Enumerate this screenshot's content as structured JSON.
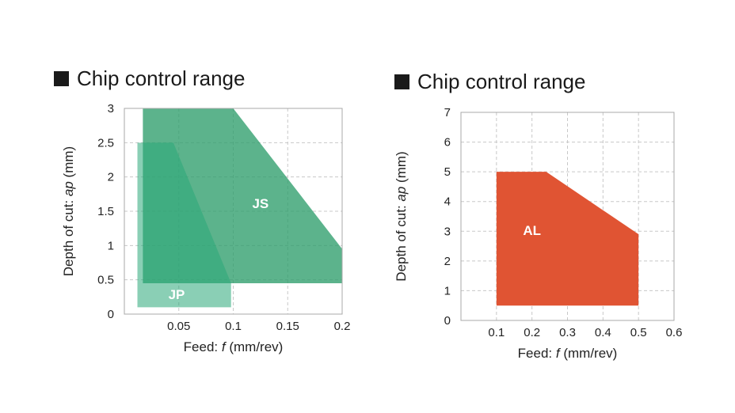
{
  "chart_data": [
    {
      "type": "area",
      "title": "Chip control range",
      "xlabel_prefix": "Feed: ",
      "xlabel_var": "f",
      "xlabel_suffix": " (mm/rev)",
      "ylabel_prefix": "Depth of cut: ",
      "ylabel_var": "ap",
      "ylabel_suffix": " (mm)",
      "xlim": [
        0,
        0.2
      ],
      "ylim": [
        0,
        3
      ],
      "xticks": [
        0.05,
        0.1,
        0.15,
        0.2
      ],
      "xtick_labels": [
        "0.05",
        "0.1",
        "0.15",
        "0.2"
      ],
      "yticks": [
        0,
        0.5,
        1,
        1.5,
        2,
        2.5,
        3
      ],
      "ytick_labels": [
        "0",
        "0.5",
        "1",
        "1.5",
        "2",
        "2.5",
        "3"
      ],
      "grid": true,
      "series": [
        {
          "name": "JS",
          "color": "#2e9d6c",
          "polygon": [
            [
              0.017,
              0.45
            ],
            [
              0.017,
              3
            ],
            [
              0.1,
              3
            ],
            [
              0.2,
              0.95
            ],
            [
              0.2,
              0.45
            ]
          ]
        },
        {
          "name": "JP",
          "color": "#2aa878",
          "polygon": [
            [
              0.012,
              0.1
            ],
            [
              0.012,
              2.5
            ],
            [
              0.045,
              2.5
            ],
            [
              0.098,
              0.45
            ],
            [
              0.098,
              0.1
            ]
          ]
        }
      ]
    },
    {
      "type": "area",
      "title": "Chip control range",
      "xlabel_prefix": "Feed: ",
      "xlabel_var": "f",
      "xlabel_suffix": " (mm/rev)",
      "ylabel_prefix": "Depth of cut: ",
      "ylabel_var": "ap",
      "ylabel_suffix": " (mm)",
      "xlim": [
        0,
        0.6
      ],
      "ylim": [
        0,
        7
      ],
      "xticks": [
        0.1,
        0.2,
        0.3,
        0.4,
        0.5,
        0.6
      ],
      "xtick_labels": [
        "0.1",
        "0.2",
        "0.3",
        "0.4",
        "0.5",
        "0.6"
      ],
      "yticks": [
        0,
        1,
        2,
        3,
        4,
        5,
        6,
        7
      ],
      "ytick_labels": [
        "0",
        "1",
        "2",
        "3",
        "4",
        "5",
        "6",
        "7"
      ],
      "grid": true,
      "series": [
        {
          "name": "AL",
          "color": "#e05433",
          "polygon": [
            [
              0.1,
              0.5
            ],
            [
              0.1,
              5
            ],
            [
              0.24,
              5
            ],
            [
              0.5,
              2.9
            ],
            [
              0.5,
              0.5
            ]
          ]
        }
      ]
    }
  ]
}
